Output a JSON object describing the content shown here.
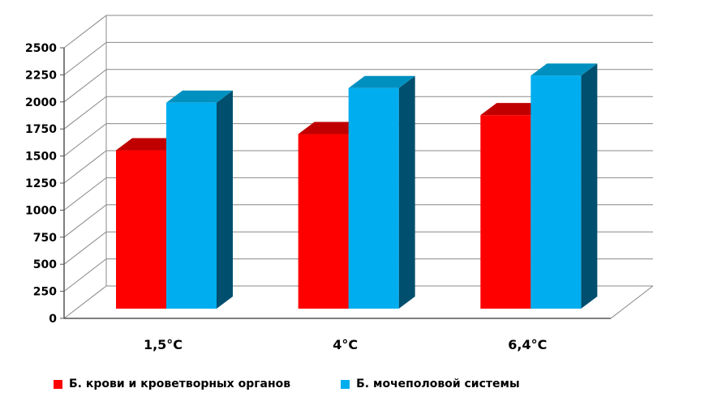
{
  "chart_data": {
    "type": "bar",
    "title": "",
    "xlabel": "",
    "ylabel": "",
    "categories": [
      "1,5°С",
      "4°С",
      "6,4°С"
    ],
    "series": [
      {
        "name": "Б. крови и кроветворных органов",
        "color": "#ff0000",
        "values": [
          1650,
          1800,
          1975
        ]
      },
      {
        "name": "Б. мочеполовой системы",
        "color": "#00aeef",
        "values": [
          2090,
          2225,
          2340
        ]
      }
    ],
    "ylim": [
      0,
      2500
    ],
    "yticks": [
      "0",
      "250",
      "500",
      "750",
      "1000",
      "1250",
      "1500",
      "1750",
      "2000",
      "2250",
      "2500"
    ],
    "grid": true,
    "legend_position": "bottom",
    "style": "3d-clustered-column"
  }
}
